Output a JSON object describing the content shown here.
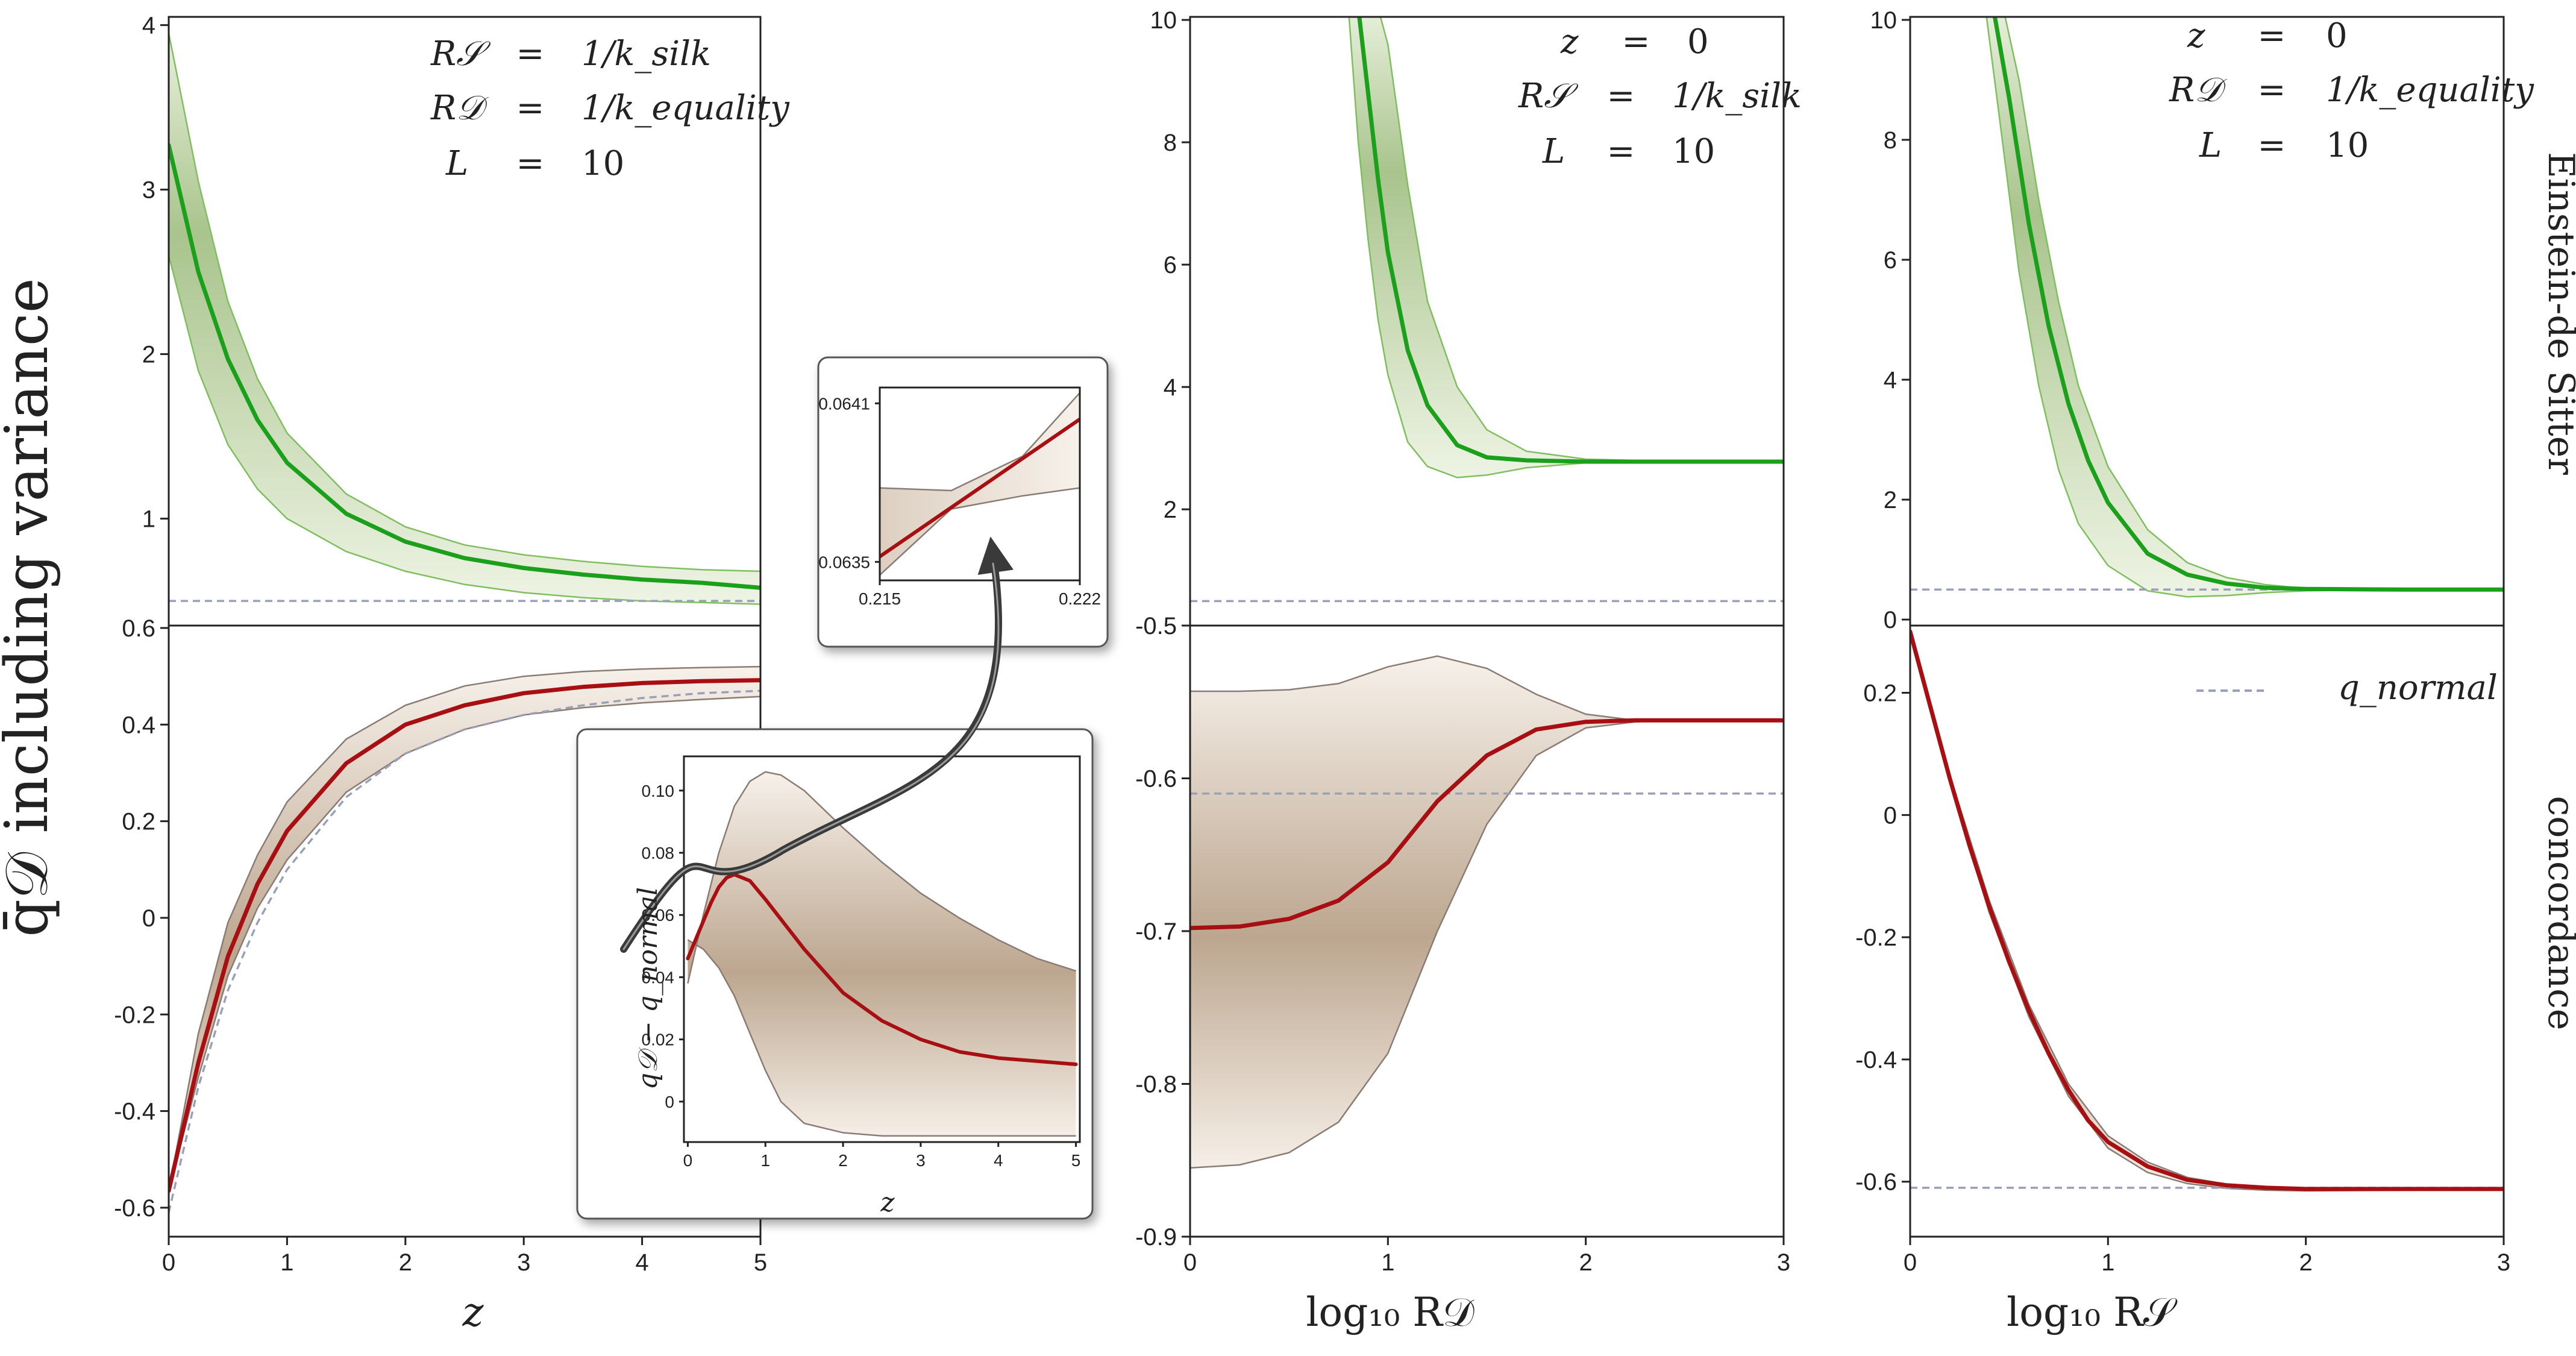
{
  "figure": {
    "y_label": "q̄𝒟 including variance",
    "x_label_left": "z",
    "x_label_mid": "log₁₀ R𝒟",
    "x_label_right": "log₁₀ R𝒮",
    "side_label_top": "Einstein-de Sitter",
    "side_label_bottom": "concordance",
    "legend_normal": "q_normal",
    "annotations": {
      "left": [
        [
          "R𝒮",
          "=",
          "1/k_silk"
        ],
        [
          "R𝒟",
          "=",
          "1/k_equality"
        ],
        [
          "L",
          "=",
          "10"
        ]
      ],
      "mid": [
        [
          "z",
          "=",
          "0"
        ],
        [
          "R𝒮",
          "=",
          "1/k_silk"
        ],
        [
          "L",
          "=",
          "10"
        ]
      ],
      "right": [
        [
          "z",
          "=",
          "0"
        ],
        [
          "R𝒟",
          "=",
          "1/k_equality"
        ],
        [
          "L",
          "=",
          "10"
        ]
      ]
    },
    "inset1": {
      "y_label": "q𝒟 − q_normal",
      "x_label": "z"
    }
  },
  "colors": {
    "eds_line": "#1aa01a",
    "eds_fill": "#c4d7ae",
    "eds_edge": "#7fbf5f",
    "conc_line": "#a80f12",
    "conc_fill": "#eadfd3",
    "conc_edge": "#8a7c74",
    "normal": "#9aa0b8"
  },
  "chart_data": [
    {
      "id": "left-top",
      "type": "line",
      "title": "Einstein-de Sitter",
      "xlabel": "z",
      "ylabel": "q̄𝒟 including variance",
      "xlim": [
        0,
        5
      ],
      "ylim": [
        0.35,
        4.05
      ],
      "xticks": [
        "0",
        "1",
        "2",
        "3",
        "4",
        "5"
      ],
      "yticks": [
        "1",
        "2",
        "3",
        "4"
      ],
      "series": [
        {
          "name": "mean",
          "x": [
            0,
            0.25,
            0.5,
            0.75,
            1,
            1.5,
            2,
            2.5,
            3,
            3.5,
            4,
            4.5,
            5
          ],
          "y": [
            3.27,
            2.5,
            1.97,
            1.6,
            1.34,
            1.03,
            0.86,
            0.76,
            0.7,
            0.66,
            0.63,
            0.61,
            0.58
          ]
        },
        {
          "name": "upper",
          "x": [
            0,
            0.25,
            0.5,
            0.75,
            1,
            1.5,
            2,
            2.5,
            3,
            3.5,
            4,
            4.5,
            5
          ],
          "y": [
            3.95,
            3.05,
            2.32,
            1.85,
            1.52,
            1.15,
            0.95,
            0.84,
            0.78,
            0.74,
            0.71,
            0.69,
            0.68
          ]
        },
        {
          "name": "lower",
          "x": [
            0,
            0.25,
            0.5,
            0.75,
            1,
            1.5,
            2,
            2.5,
            3,
            3.5,
            4,
            4.5,
            5
          ],
          "y": [
            2.6,
            1.9,
            1.45,
            1.18,
            1.0,
            0.8,
            0.68,
            0.6,
            0.55,
            0.52,
            0.5,
            0.49,
            0.48
          ]
        },
        {
          "name": "q_normal",
          "x": [
            0,
            5
          ],
          "y": [
            0.5,
            0.5
          ]
        }
      ]
    },
    {
      "id": "left-bottom",
      "type": "line",
      "title": "concordance",
      "xlabel": "z",
      "ylabel": "q̄𝒟 including variance",
      "xlim": [
        0,
        5
      ],
      "ylim": [
        -0.66,
        0.605
      ],
      "xticks": [
        "0",
        "1",
        "2",
        "3",
        "4",
        "5"
      ],
      "yticks": [
        "-0.6",
        "-0.4",
        "-0.2",
        "0",
        "0.2",
        "0.4",
        "0.6"
      ],
      "series": [
        {
          "name": "mean",
          "x": [
            0,
            0.25,
            0.5,
            0.75,
            1,
            1.5,
            2,
            2.5,
            3,
            3.5,
            4,
            4.5,
            5
          ],
          "y": [
            -0.565,
            -0.3,
            -0.08,
            0.07,
            0.18,
            0.32,
            0.4,
            0.44,
            0.465,
            0.478,
            0.486,
            0.49,
            0.492
          ]
        },
        {
          "name": "upper",
          "x": [
            0,
            0.25,
            0.5,
            0.75,
            1,
            1.5,
            2,
            2.5,
            3,
            3.5,
            4,
            4.5,
            5
          ],
          "y": [
            -0.565,
            -0.24,
            -0.01,
            0.13,
            0.24,
            0.37,
            0.44,
            0.48,
            0.5,
            0.51,
            0.515,
            0.518,
            0.52
          ]
        },
        {
          "name": "lower",
          "x": [
            0,
            0.25,
            0.5,
            0.75,
            1,
            1.5,
            2,
            2.5,
            3,
            3.5,
            4,
            4.5,
            5
          ],
          "y": [
            -0.565,
            -0.33,
            -0.12,
            0.02,
            0.12,
            0.26,
            0.34,
            0.39,
            0.42,
            0.435,
            0.445,
            0.452,
            0.458
          ]
        },
        {
          "name": "q_normal",
          "x": [
            0,
            0.25,
            0.5,
            0.75,
            1,
            1.5,
            2,
            2.5,
            3,
            3.5,
            4,
            4.5,
            5
          ],
          "y": [
            -0.61,
            -0.35,
            -0.15,
            -0.01,
            0.1,
            0.25,
            0.34,
            0.39,
            0.42,
            0.44,
            0.455,
            0.465,
            0.47
          ]
        }
      ]
    },
    {
      "id": "mid-top",
      "type": "line",
      "title": "Einstein-de Sitter",
      "xlabel": "log₁₀ R𝒟",
      "xlim": [
        0,
        3
      ],
      "ylim": [
        0.1,
        10.05
      ],
      "xticks": [
        "0",
        "1",
        "2",
        "3"
      ],
      "yticks": [
        "2",
        "4",
        "6",
        "8",
        "10"
      ],
      "series": [
        {
          "name": "mean",
          "x": [
            0.85,
            0.9,
            0.95,
            1.0,
            1.1,
            1.2,
            1.35,
            1.5,
            1.7,
            2.0,
            2.5,
            3.0
          ],
          "y": [
            10.2,
            8.8,
            7.4,
            6.2,
            4.6,
            3.7,
            3.05,
            2.85,
            2.8,
            2.78,
            2.78,
            2.78
          ]
        },
        {
          "name": "upper",
          "x": [
            0.95,
            1.0,
            1.1,
            1.2,
            1.35,
            1.5,
            1.7,
            2.0,
            2.5,
            3.0
          ],
          "y": [
            10.2,
            9.6,
            7.3,
            5.4,
            4.0,
            3.3,
            2.95,
            2.82,
            2.78,
            2.78
          ]
        },
        {
          "name": "lower",
          "x": [
            0.8,
            0.85,
            0.9,
            0.95,
            1.0,
            1.1,
            1.2,
            1.35,
            1.5,
            1.7,
            2.0,
            2.5,
            3.0
          ],
          "y": [
            10.2,
            8.0,
            6.4,
            5.1,
            4.2,
            3.1,
            2.7,
            2.52,
            2.56,
            2.68,
            2.76,
            2.78,
            2.78
          ]
        },
        {
          "name": "q_normal",
          "x": [
            0,
            3
          ],
          "y": [
            0.5,
            0.5
          ]
        }
      ]
    },
    {
      "id": "mid-bottom",
      "type": "line",
      "title": "concordance",
      "xlabel": "log₁₀ R𝒟",
      "xlim": [
        0,
        3
      ],
      "ylim": [
        -0.9,
        -0.5
      ],
      "xticks": [
        "0",
        "1",
        "2",
        "3"
      ],
      "yticks": [
        "-0.9",
        "-0.8",
        "-0.7",
        "-0.6",
        "-0.5"
      ],
      "series": [
        {
          "name": "mean",
          "x": [
            0,
            0.25,
            0.5,
            0.75,
            1.0,
            1.25,
            1.5,
            1.75,
            2.0,
            2.25,
            2.5,
            3.0
          ],
          "y": [
            -0.698,
            -0.697,
            -0.692,
            -0.68,
            -0.655,
            -0.615,
            -0.585,
            -0.568,
            -0.563,
            -0.562,
            -0.562,
            -0.562
          ]
        },
        {
          "name": "upper",
          "x": [
            0,
            0.25,
            0.5,
            0.75,
            1.0,
            1.25,
            1.5,
            1.75,
            2.0,
            2.25,
            2.5,
            3.0
          ],
          "y": [
            -0.543,
            -0.543,
            -0.542,
            -0.538,
            -0.527,
            -0.52,
            -0.528,
            -0.545,
            -0.558,
            -0.562,
            -0.562,
            -0.562
          ]
        },
        {
          "name": "lower",
          "x": [
            0,
            0.25,
            0.5,
            0.75,
            1.0,
            1.25,
            1.5,
            1.75,
            2.0,
            2.25,
            2.5,
            3.0
          ],
          "y": [
            -0.855,
            -0.853,
            -0.845,
            -0.825,
            -0.78,
            -0.7,
            -0.63,
            -0.585,
            -0.567,
            -0.563,
            -0.562,
            -0.562
          ]
        },
        {
          "name": "q_normal",
          "x": [
            0,
            3
          ],
          "y": [
            -0.61,
            -0.61
          ]
        }
      ]
    },
    {
      "id": "right-top",
      "type": "line",
      "title": "Einstein-de Sitter",
      "xlabel": "log₁₀ R𝒮",
      "xlim": [
        0,
        3
      ],
      "ylim": [
        -0.1,
        10.05
      ],
      "xticks": [
        "0",
        "1",
        "2",
        "3"
      ],
      "yticks": [
        "0",
        "2",
        "4",
        "6",
        "8",
        "10"
      ],
      "series": [
        {
          "name": "mean",
          "x": [
            0.42,
            0.5,
            0.6,
            0.7,
            0.8,
            0.9,
            1.0,
            1.2,
            1.4,
            1.6,
            1.8,
            2.0,
            2.5,
            3.0
          ],
          "y": [
            10.2,
            8.7,
            6.6,
            4.9,
            3.6,
            2.65,
            1.95,
            1.1,
            0.75,
            0.6,
            0.53,
            0.51,
            0.5,
            0.5
          ]
        },
        {
          "name": "upper",
          "x": [
            0.47,
            0.55,
            0.65,
            0.75,
            0.85,
            1.0,
            1.2,
            1.4,
            1.6,
            1.8,
            2.0,
            2.5,
            3.0
          ],
          "y": [
            10.2,
            9.0,
            7.0,
            5.3,
            3.9,
            2.55,
            1.5,
            0.95,
            0.7,
            0.58,
            0.52,
            0.5,
            0.5
          ]
        },
        {
          "name": "lower",
          "x": [
            0.38,
            0.45,
            0.55,
            0.65,
            0.75,
            0.85,
            1.0,
            1.2,
            1.4,
            1.6,
            1.8,
            2.0,
            2.5,
            3.0
          ],
          "y": [
            10.2,
            8.4,
            5.8,
            3.9,
            2.5,
            1.6,
            0.9,
            0.48,
            0.38,
            0.4,
            0.45,
            0.48,
            0.5,
            0.5
          ]
        },
        {
          "name": "q_normal",
          "x": [
            0,
            3
          ],
          "y": [
            0.5,
            0.5
          ]
        }
      ]
    },
    {
      "id": "right-bottom",
      "type": "line",
      "title": "concordance",
      "xlabel": "log₁₀ R𝒮",
      "xlim": [
        0,
        3
      ],
      "ylim": [
        -0.69,
        0.31
      ],
      "xticks": [
        "0",
        "1",
        "2",
        "3"
      ],
      "yticks": [
        "-0.6",
        "-0.4",
        "-0.2",
        "0",
        "0.2"
      ],
      "series": [
        {
          "name": "mean",
          "x": [
            0,
            0.1,
            0.2,
            0.3,
            0.4,
            0.5,
            0.6,
            0.7,
            0.8,
            0.9,
            1.0,
            1.2,
            1.4,
            1.6,
            1.8,
            2.0,
            2.5,
            3.0
          ],
          "y": [
            0.3,
            0.18,
            0.06,
            -0.05,
            -0.15,
            -0.24,
            -0.32,
            -0.39,
            -0.45,
            -0.5,
            -0.535,
            -0.575,
            -0.597,
            -0.606,
            -0.61,
            -0.612,
            -0.612,
            -0.612
          ]
        },
        {
          "name": "upper",
          "x": [
            0,
            0.2,
            0.4,
            0.6,
            0.8,
            1.0,
            1.2,
            1.4,
            1.6,
            1.8,
            2.0,
            2.5,
            3.0
          ],
          "y": [
            0.3,
            0.065,
            -0.14,
            -0.31,
            -0.44,
            -0.525,
            -0.568,
            -0.593,
            -0.604,
            -0.609,
            -0.611,
            -0.612,
            -0.612
          ]
        },
        {
          "name": "lower",
          "x": [
            0,
            0.2,
            0.4,
            0.6,
            0.8,
            1.0,
            1.2,
            1.4,
            1.6,
            1.8,
            2.0,
            2.5,
            3.0
          ],
          "y": [
            0.3,
            0.055,
            -0.16,
            -0.33,
            -0.46,
            -0.545,
            -0.585,
            -0.603,
            -0.611,
            -0.614,
            -0.615,
            -0.614,
            -0.613
          ]
        },
        {
          "name": "q_normal",
          "x": [
            0,
            3
          ],
          "y": [
            -0.61,
            -0.61
          ]
        }
      ]
    },
    {
      "id": "inset-difference",
      "type": "line",
      "xlabel": "z",
      "ylabel": "q𝒟 − q_normal",
      "xlim": [
        -0.05,
        5.05
      ],
      "ylim": [
        -0.013,
        0.111
      ],
      "xticks": [
        "0",
        "1",
        "2",
        "3",
        "4",
        "5"
      ],
      "yticks": [
        "0",
        "0.02",
        "0.04",
        "0.06",
        "0.08",
        "0.10"
      ],
      "series": [
        {
          "name": "mean",
          "x": [
            0,
            0.1,
            0.2,
            0.3,
            0.4,
            0.5,
            0.6,
            0.8,
            1.0,
            1.25,
            1.5,
            2.0,
            2.5,
            3.0,
            3.5,
            4.0,
            4.5,
            5.0
          ],
          "y": [
            0.046,
            0.052,
            0.058,
            0.064,
            0.069,
            0.072,
            0.073,
            0.071,
            0.065,
            0.057,
            0.049,
            0.035,
            0.026,
            0.02,
            0.016,
            0.014,
            0.013,
            0.012
          ]
        },
        {
          "name": "upper",
          "x": [
            0,
            0.2,
            0.4,
            0.6,
            0.8,
            1.0,
            1.2,
            1.5,
            2.0,
            2.5,
            3.0,
            3.5,
            4.0,
            4.5,
            5.0
          ],
          "y": [
            0.038,
            0.06,
            0.08,
            0.095,
            0.103,
            0.106,
            0.105,
            0.1,
            0.088,
            0.077,
            0.067,
            0.059,
            0.052,
            0.046,
            0.042
          ]
        },
        {
          "name": "lower",
          "x": [
            0,
            0.2,
            0.4,
            0.6,
            0.8,
            1.0,
            1.2,
            1.5,
            2.0,
            2.5,
            3.0,
            3.5,
            4.0,
            4.5,
            5.0
          ],
          "y": [
            0.052,
            0.049,
            0.043,
            0.034,
            0.022,
            0.01,
            0.0,
            -0.007,
            -0.01,
            -0.011,
            -0.011,
            -0.011,
            -0.011,
            -0.011,
            -0.011
          ]
        }
      ]
    },
    {
      "id": "inset-zoom",
      "type": "line",
      "xlim": [
        0.215,
        0.222
      ],
      "ylim": [
        0.06343,
        0.06416
      ],
      "xticks": [
        "0.215",
        "0.222"
      ],
      "yticks": [
        "0.0635",
        "0.0641"
      ],
      "series": [
        {
          "name": "mean",
          "x": [
            0.215,
            0.222
          ],
          "y": [
            0.06352,
            0.06404
          ]
        },
        {
          "name": "upper",
          "x": [
            0.215,
            0.2175,
            0.22,
            0.222
          ],
          "y": [
            0.06378,
            0.06377,
            0.0639,
            0.06414
          ]
        },
        {
          "name": "lower",
          "x": [
            0.215,
            0.2175,
            0.22,
            0.222
          ],
          "y": [
            0.06345,
            0.0637,
            0.06375,
            0.06378
          ]
        }
      ]
    }
  ]
}
